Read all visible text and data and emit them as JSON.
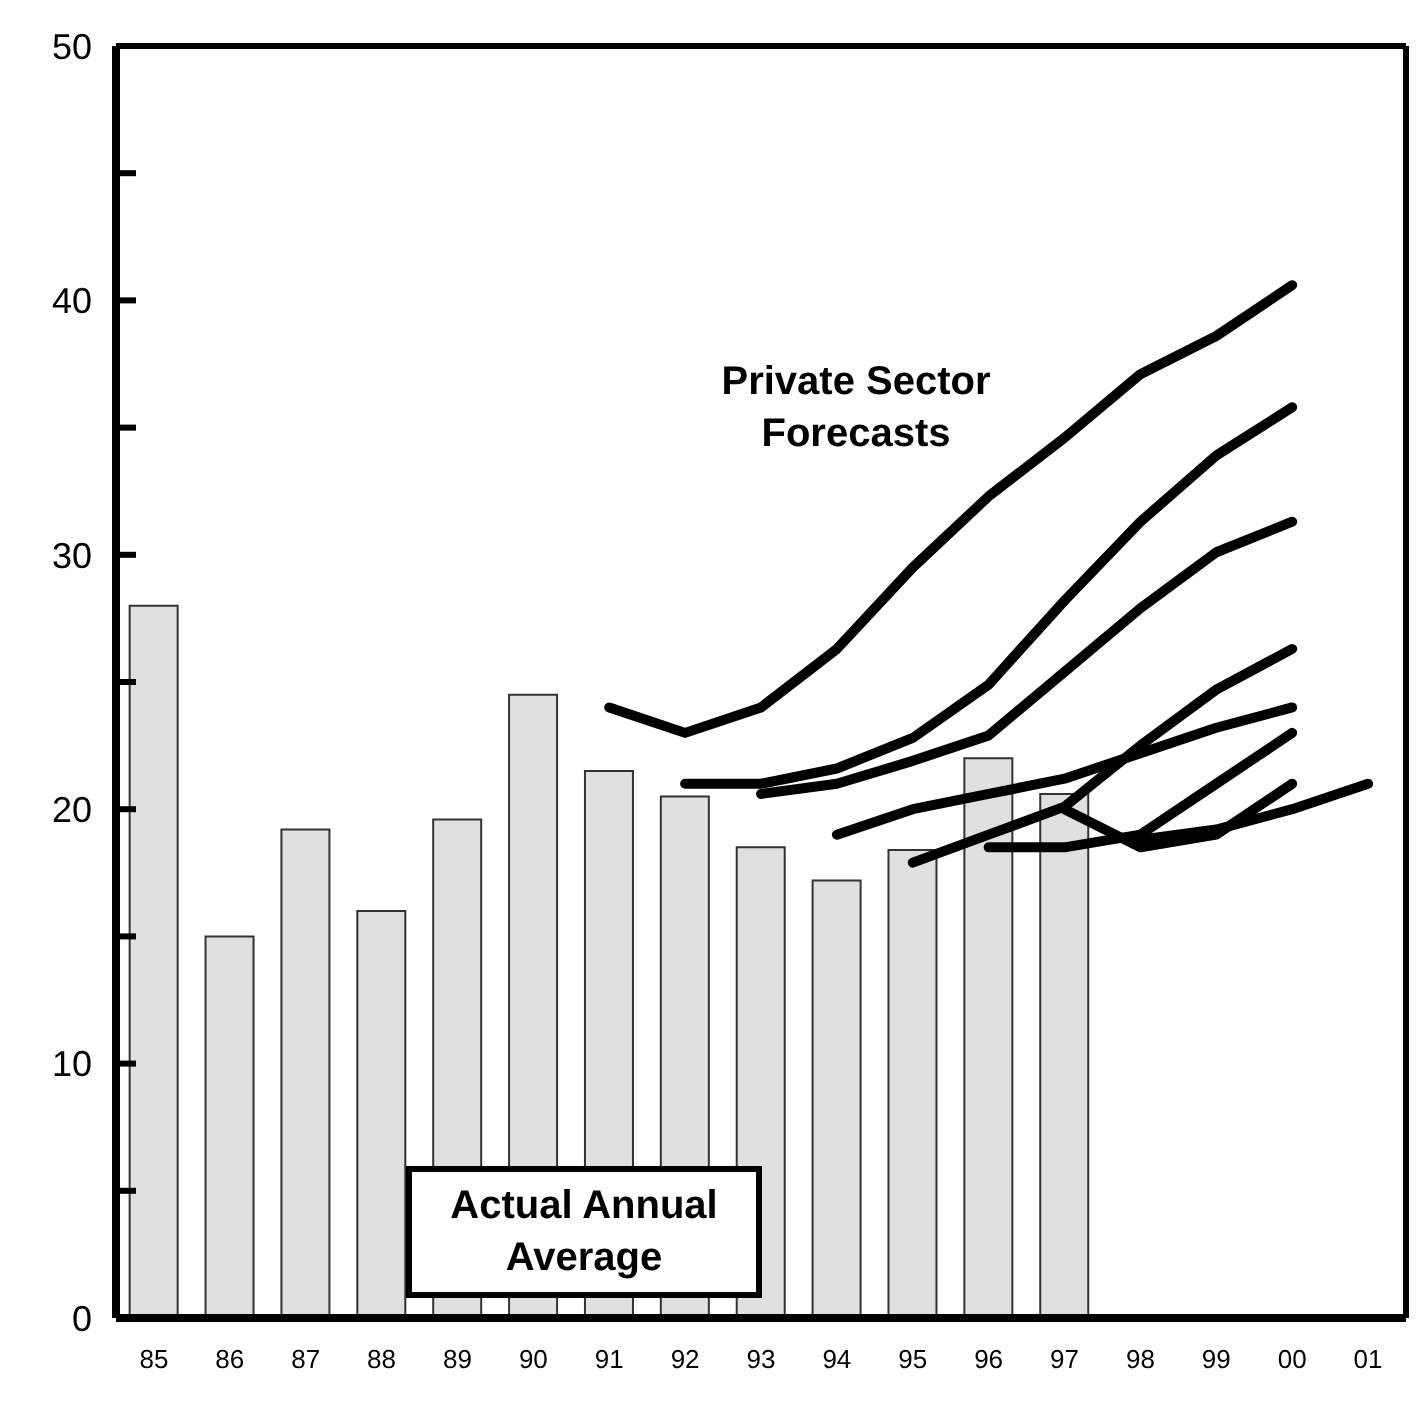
{
  "chart_data": {
    "type": "bar",
    "categories": [
      "85",
      "86",
      "87",
      "88",
      "89",
      "90",
      "91",
      "92",
      "93",
      "94",
      "95",
      "96",
      "97",
      "98",
      "99",
      "00",
      "01"
    ],
    "series": [
      {
        "color": "#e0e0e0",
        "values": [
          28.0,
          15.0,
          19.2,
          16.0,
          19.6,
          24.5,
          21.5,
          20.5,
          18.5,
          17.2,
          18.4,
          22.0,
          20.6,
          null,
          null,
          null,
          null
        ]
      },
      {
        "type": "line",
        "color": "#000000",
        "values": [
          null,
          null,
          null,
          null,
          null,
          null,
          24.0,
          23.0,
          24.0,
          26.3,
          29.5,
          32.3,
          34.6,
          37.1,
          38.6,
          40.6,
          null
        ]
      },
      {
        "type": "line",
        "color": "#000000",
        "values": [
          null,
          null,
          null,
          null,
          null,
          null,
          null,
          21.0,
          21.0,
          21.6,
          22.8,
          24.9,
          28.2,
          31.3,
          33.9,
          35.8,
          null
        ]
      },
      {
        "type": "line",
        "color": "#000000",
        "values": [
          null,
          null,
          null,
          null,
          null,
          null,
          null,
          null,
          20.6,
          21.0,
          21.9,
          22.9,
          25.4,
          27.9,
          30.1,
          31.3,
          null
        ]
      },
      {
        "type": "line",
        "color": "#000000",
        "values": [
          null,
          null,
          null,
          null,
          null,
          null,
          null,
          null,
          null,
          19.0,
          20.0,
          20.6,
          21.2,
          22.2,
          23.2,
          24.0,
          null
        ]
      },
      {
        "type": "line",
        "color": "#000000",
        "values": [
          null,
          null,
          null,
          null,
          null,
          null,
          null,
          null,
          null,
          null,
          17.9,
          19.0,
          20.1,
          22.5,
          24.7,
          26.3,
          null
        ]
      },
      {
        "type": "line",
        "color": "#000000",
        "values": [
          null,
          null,
          null,
          null,
          null,
          null,
          null,
          null,
          null,
          null,
          null,
          18.5,
          18.5,
          19.0,
          21.0,
          23.0,
          null
        ]
      },
      {
        "type": "line",
        "color": "#000000",
        "values": [
          null,
          null,
          null,
          null,
          null,
          null,
          null,
          null,
          null,
          null,
          null,
          null,
          20.0,
          18.5,
          19.0,
          21.0,
          null
        ]
      },
      {
        "type": "line",
        "color": "#000000",
        "values": [
          null,
          null,
          null,
          null,
          null,
          null,
          null,
          null,
          null,
          null,
          null,
          null,
          null,
          18.8,
          19.2,
          20.0,
          21.0
        ]
      }
    ],
    "ylim": [
      0,
      50
    ],
    "yticks": [
      0,
      {
        "value": 5,
        "label": null
      },
      10,
      {
        "value": 15,
        "label": null
      },
      20,
      {
        "value": 25,
        "label": null
      },
      30,
      {
        "value": 35,
        "label": null
      },
      40,
      {
        "value": 45,
        "label": null
      },
      50
    ],
    "annotations": [
      "Private Sector Forecasts",
      "Actual Annual Average"
    ],
    "grid": false,
    "legend": false,
    "marker": "none",
    "line_style": "solid"
  }
}
